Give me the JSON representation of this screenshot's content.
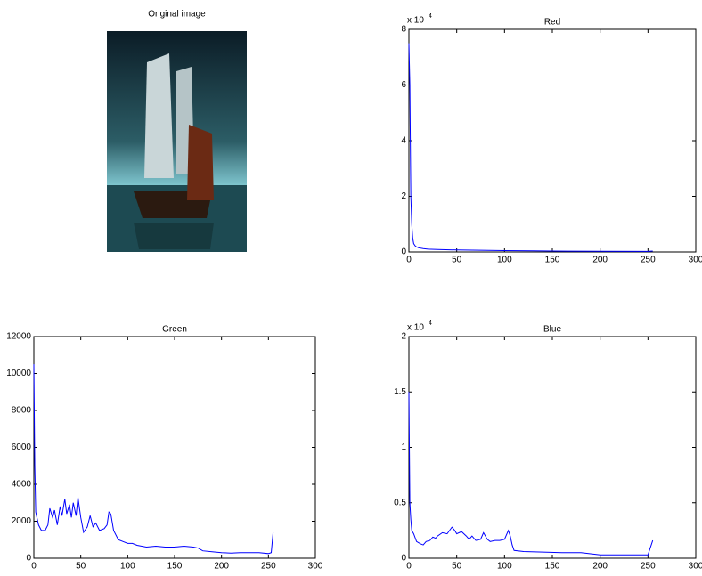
{
  "chart_data": [
    {
      "type": "image",
      "title": "Original image"
    },
    {
      "type": "line",
      "title": "Red",
      "color": "#0000ff",
      "axis_multiplier": {
        "text": "x 10",
        "exponent": "4"
      },
      "x": [
        0,
        1,
        2,
        3,
        4,
        5,
        7,
        10,
        15,
        20,
        30,
        50,
        75,
        100,
        130,
        150,
        200,
        250,
        255
      ],
      "values": [
        75000,
        60000,
        20000,
        10000,
        5000,
        3000,
        2000,
        1500,
        1200,
        1000,
        900,
        700,
        600,
        500,
        400,
        300,
        250,
        200,
        300
      ],
      "xlim": [
        0,
        300
      ],
      "xticks": [
        0,
        50,
        100,
        150,
        200,
        250,
        300
      ],
      "ylim": [
        0,
        80000
      ],
      "yticks": [
        {
          "value": 0,
          "label": "0"
        },
        {
          "value": 20000,
          "label": "2"
        },
        {
          "value": 40000,
          "label": "4"
        },
        {
          "value": 60000,
          "label": "6"
        },
        {
          "value": 80000,
          "label": "8"
        }
      ]
    },
    {
      "type": "line",
      "title": "Green",
      "color": "#0000ff",
      "x": [
        0,
        1,
        2,
        5,
        8,
        12,
        15,
        17,
        20,
        22,
        25,
        28,
        30,
        33,
        35,
        38,
        40,
        42,
        45,
        47,
        50,
        53,
        57,
        60,
        63,
        66,
        70,
        75,
        78,
        80,
        82,
        85,
        90,
        95,
        100,
        105,
        110,
        120,
        130,
        140,
        150,
        160,
        170,
        175,
        180,
        190,
        200,
        210,
        220,
        230,
        240,
        250,
        253,
        255
      ],
      "values": [
        10500,
        5000,
        2500,
        1800,
        1500,
        1500,
        1800,
        2700,
        2200,
        2600,
        1800,
        2800,
        2300,
        3200,
        2400,
        2900,
        2200,
        3000,
        2300,
        3300,
        2200,
        1400,
        1700,
        2300,
        1700,
        1900,
        1500,
        1600,
        1800,
        2500,
        2400,
        1500,
        1000,
        900,
        800,
        800,
        700,
        600,
        650,
        600,
        600,
        650,
        600,
        550,
        400,
        350,
        300,
        280,
        300,
        300,
        300,
        250,
        300,
        1400
      ],
      "xlim": [
        0,
        300
      ],
      "xticks": [
        0,
        50,
        100,
        150,
        200,
        250,
        300
      ],
      "ylim": [
        0,
        12000
      ],
      "yticks": [
        0,
        2000,
        4000,
        6000,
        8000,
        10000,
        12000
      ]
    },
    {
      "type": "line",
      "title": "Blue",
      "color": "#0000ff",
      "axis_multiplier": {
        "text": "x 10",
        "exponent": "4"
      },
      "x": [
        0,
        1,
        2,
        3,
        5,
        8,
        12,
        15,
        18,
        22,
        25,
        28,
        30,
        35,
        40,
        45,
        48,
        50,
        55,
        60,
        63,
        66,
        70,
        75,
        78,
        82,
        85,
        90,
        95,
        100,
        104,
        106,
        108,
        110,
        120,
        140,
        160,
        180,
        200,
        210,
        230,
        250,
        255
      ],
      "values": [
        15000,
        5000,
        3500,
        2500,
        2200,
        1500,
        1300,
        1200,
        1500,
        1600,
        1900,
        1800,
        2000,
        2300,
        2200,
        2800,
        2500,
        2200,
        2400,
        2000,
        1700,
        2000,
        1600,
        1700,
        2300,
        1700,
        1500,
        1600,
        1600,
        1700,
        2500,
        2000,
        1200,
        700,
        600,
        550,
        500,
        500,
        300,
        300,
        300,
        300,
        1600
      ],
      "xlim": [
        0,
        300
      ],
      "xticks": [
        0,
        50,
        100,
        150,
        200,
        250,
        300
      ],
      "ylim": [
        0,
        20000
      ],
      "yticks": [
        {
          "value": 0,
          "label": "0"
        },
        {
          "value": 5000,
          "label": "0.5"
        },
        {
          "value": 10000,
          "label": "1"
        },
        {
          "value": 15000,
          "label": "1.5"
        },
        {
          "value": 20000,
          "label": "2"
        }
      ]
    }
  ]
}
